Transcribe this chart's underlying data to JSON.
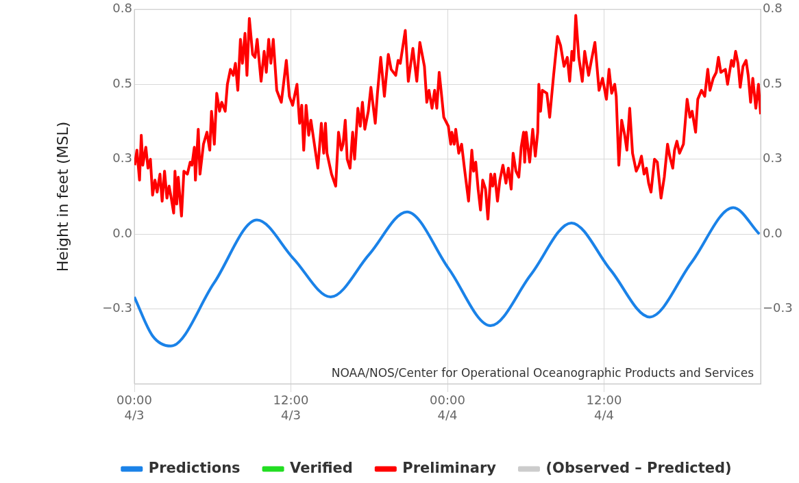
{
  "chart_data": {
    "type": "line",
    "ylabel": "Height in feet (MSL)",
    "xlim": [
      "--04-03T00:00",
      "--04-05T00:00"
    ],
    "xticks": [
      {
        "value": "--04-03T00:00",
        "label": "00:00\n4/3"
      },
      {
        "value": "--04-03T12:00",
        "label": "12:00\n4/3"
      },
      {
        "value": "--04-04T00:00",
        "label": "00:00\n4/4"
      },
      {
        "value": "--04-04T12:00",
        "label": "12:00\n4/4"
      }
    ],
    "ylim": [
      -0.5,
      0.75
    ],
    "yticks": [
      {
        "value": -0.25,
        "label": "−0.3"
      },
      {
        "value": 0,
        "label": "0.0"
      },
      {
        "value": 0.25,
        "label": "0.3"
      },
      {
        "value": 0.5,
        "label": "0.5"
      },
      {
        "value": 0.75,
        "label": "0.8"
      }
    ],
    "y2lim": [
      -0.5,
      0.75
    ],
    "y2ticks": [
      {
        "value": -0.25,
        "label": "−0.3"
      },
      {
        "value": 0,
        "label": "0.0"
      },
      {
        "value": 0.25,
        "label": "0.3"
      },
      {
        "value": 0.5,
        "label": "0.5"
      },
      {
        "value": 0.75,
        "label": "0.8"
      }
    ],
    "grid": true,
    "legend": "bottom",
    "marker": "none",
    "annotations": [
      "NOAA/NOS/Center for Operational Oceanographic Products and Services"
    ],
    "series": [
      {
        "name": "Predictions",
        "color": "#1a82e8",
        "x": [
          "--04-03T00:00",
          "--04-03T01:24",
          "--04-03T02:48",
          "--04-03T06:06",
          "--04-03T09:24",
          "--04-03T12:12",
          "--04-03T15:03",
          "--04-03T18:00",
          "--04-03T20:54",
          "--04-04T00:06",
          "--04-04T03:18",
          "--04-04T06:24",
          "--04-04T09:30",
          "--04-04T12:30",
          "--04-04T15:30",
          "--04-04T18:42",
          "--04-04T21:54",
          "--04-04T23:54"
        ],
        "values": [
          -0.21,
          -0.34,
          -0.374,
          -0.164,
          0.047,
          -0.082,
          -0.21,
          -0.068,
          0.074,
          -0.116,
          -0.306,
          -0.135,
          0.037,
          -0.12,
          -0.277,
          -0.095,
          0.088,
          0.0
        ]
      },
      {
        "name": "Verified",
        "color": "#22dd22"
      },
      {
        "name": "Preliminary",
        "color": "#ff0000",
        "x": [
          "--04-03T00:02",
          "--04-03T00:12",
          "--04-03T00:24",
          "--04-03T00:32",
          "--04-03T00:39",
          "--04-03T00:53",
          "--04-03T01:03",
          "--04-03T01:14",
          "--04-03T01:24",
          "--04-03T01:35",
          "--04-03T01:45",
          "--04-03T01:58",
          "--04-03T02:08",
          "--04-03T02:19",
          "--04-03T02:30",
          "--04-03T02:40",
          "--04-03T02:50",
          "--04-03T03:01",
          "--04-03T03:07",
          "--04-03T03:15",
          "--04-03T03:22",
          "--04-03T03:37",
          "--04-03T03:48",
          "--04-03T04:04",
          "--04-03T04:17",
          "--04-03T04:25",
          "--04-03T04:36",
          "--04-03T04:41",
          "--04-03T04:54",
          "--04-03T05:02",
          "--04-03T05:18",
          "--04-03T05:34",
          "--04-03T05:47",
          "--04-03T05:55",
          "--04-03T06:08",
          "--04-03T06:19",
          "--04-03T06:32",
          "--04-03T06:42",
          "--04-03T06:58",
          "--04-03T07:08",
          "--04-03T07:22",
          "--04-03T07:35",
          "--04-03T07:45",
          "--04-03T07:56",
          "--04-03T08:08",
          "--04-03T08:17",
          "--04-03T08:29",
          "--04-03T08:38",
          "--04-03T08:49",
          "--04-03T09:04",
          "--04-03T09:15",
          "--04-03T09:25",
          "--04-03T09:43",
          "--04-03T09:57",
          "--04-03T10:07",
          "--04-03T10:18",
          "--04-03T10:28",
          "--04-03T10:39",
          "--04-03T10:55",
          "--04-03T11:16",
          "--04-03T11:26",
          "--04-03T11:39",
          "--04-03T11:53",
          "--04-03T12:08",
          "--04-03T12:28",
          "--04-03T12:40",
          "--04-03T12:50",
          "--04-03T12:59",
          "--04-03T13:10",
          "--04-03T13:22",
          "--04-03T13:32",
          "--04-03T13:48",
          "--04-03T14:04",
          "--04-03T14:20",
          "--04-03T14:31",
          "--04-03T14:39",
          "--04-03T14:46",
          "--04-03T15:07",
          "--04-03T15:26",
          "--04-03T15:39",
          "--04-03T15:52",
          "--04-03T16:00",
          "--04-03T16:10",
          "--04-03T16:19",
          "--04-03T16:32",
          "--04-03T16:44",
          "--04-03T16:53",
          "--04-03T17:08",
          "--04-03T17:19",
          "--04-03T17:29",
          "--04-03T17:40",
          "--04-03T17:56",
          "--04-03T18:08",
          "--04-03T18:28",
          "--04-03T18:38",
          "--04-03T18:53",
          "--04-03T19:10",
          "--04-03T19:28",
          "--04-03T19:41",
          "--04-03T20:02",
          "--04-03T20:13",
          "--04-03T20:23",
          "--04-03T20:46",
          "--04-03T21:00",
          "--04-03T21:21",
          "--04-03T21:39",
          "--04-03T21:53",
          "--04-03T22:14",
          "--04-03T22:25",
          "--04-03T22:35",
          "--04-03T22:49",
          "--04-03T23:01",
          "--04-03T23:11",
          "--04-03T23:22",
          "--04-03T23:32",
          "--04-03T23:43",
          "--04-04T00:04",
          "--04-04T00:15",
          "--04-04T00:20",
          "--04-04T00:31",
          "--04-04T00:38",
          "--04-04T00:52",
          "--04-04T01:05",
          "--04-04T01:18",
          "--04-04T01:37",
          "--04-04T01:52",
          "--04-04T02:00",
          "--04-04T02:10",
          "--04-04T02:21",
          "--04-04T02:32",
          "--04-04T02:42",
          "--04-04T02:55",
          "--04-04T03:06",
          "--04-04T03:19",
          "--04-04T03:28",
          "--04-04T03:37",
          "--04-04T03:50",
          "--04-04T04:01",
          "--04-04T04:15",
          "--04-04T04:29",
          "--04-04T04:40",
          "--04-04T04:53",
          "--04-04T05:02",
          "--04-04T05:15",
          "--04-04T05:28",
          "--04-04T05:39",
          "--04-04T05:50",
          "--04-04T05:55",
          "--04-04T06:02",
          "--04-04T06:18",
          "--04-04T06:32",
          "--04-04T06:44",
          "--04-04T06:55",
          "--04-04T07:00",
          "--04-04T07:08",
          "--04-04T07:16",
          "--04-04T07:37",
          "--04-04T07:50",
          "--04-04T08:08",
          "--04-04T08:26",
          "--04-04T08:40",
          "--04-04T08:56",
          "--04-04T09:11",
          "--04-04T09:22",
          "--04-04T09:32",
          "--04-04T09:41",
          "--04-04T09:50",
          "--04-04T10:04",
          "--04-04T10:20",
          "--04-04T10:31",
          "--04-04T10:49",
          "--04-04T11:02",
          "--04-04T11:18",
          "--04-04T11:37",
          "--04-04T11:53",
          "--04-04T12:11",
          "--04-04T12:23",
          "--04-04T12:35",
          "--04-04T12:49",
          "--04-04T12:56",
          "--04-04T13:08",
          "--04-04T13:21",
          "--04-04T13:35",
          "--04-04T13:45",
          "--04-04T13:58",
          "--04-04T14:11",
          "--04-04T14:28",
          "--04-04T14:41",
          "--04-04T14:52",
          "--04-04T15:04",
          "--04-04T15:15",
          "--04-04T15:25",
          "--04-04T15:36",
          "--04-04T15:52",
          "--04-04T16:05",
          "--04-04T16:22",
          "--04-04T16:37",
          "--04-04T16:52",
          "--04-04T17:02",
          "--04-04T17:16",
          "--04-04T17:24",
          "--04-04T17:35",
          "--04-04T17:47",
          "--04-04T18:05",
          "--04-04T18:22",
          "--04-04T18:35",
          "--04-04T18:45",
          "--04-04T19:01",
          "--04-04T19:11",
          "--04-04T19:28",
          "--04-04T19:43",
          "--04-04T19:57",
          "--04-04T20:07",
          "--04-04T20:22",
          "--04-04T20:36",
          "--04-04T20:46",
          "--04-04T20:57",
          "--04-04T21:18",
          "--04-04T21:28",
          "--04-04T21:46",
          "--04-04T21:55",
          "--04-04T22:05",
          "--04-04T22:16",
          "--04-04T22:26",
          "--04-04T22:39",
          "--04-04T22:53",
          "--04-04T23:03",
          "--04-04T23:14",
          "--04-04T23:24",
          "--04-04T23:38",
          "--04-04T23:50",
          "--04-05T00:00"
        ],
        "values": [
          0.23,
          0.28,
          0.18,
          0.33,
          0.23,
          0.29,
          0.22,
          0.25,
          0.13,
          0.18,
          0.14,
          0.2,
          0.11,
          0.21,
          0.12,
          0.16,
          0.12,
          0.07,
          0.21,
          0.1,
          0.19,
          0.06,
          0.21,
          0.2,
          0.24,
          0.23,
          0.29,
          0.18,
          0.35,
          0.2,
          0.3,
          0.34,
          0.28,
          0.41,
          0.3,
          0.47,
          0.41,
          0.44,
          0.41,
          0.5,
          0.55,
          0.53,
          0.57,
          0.48,
          0.65,
          0.57,
          0.67,
          0.53,
          0.72,
          0.6,
          0.59,
          0.65,
          0.51,
          0.61,
          0.54,
          0.65,
          0.57,
          0.65,
          0.48,
          0.44,
          0.5,
          0.58,
          0.46,
          0.43,
          0.5,
          0.37,
          0.43,
          0.28,
          0.43,
          0.33,
          0.38,
          0.3,
          0.22,
          0.37,
          0.27,
          0.37,
          0.27,
          0.2,
          0.16,
          0.34,
          0.28,
          0.3,
          0.38,
          0.25,
          0.22,
          0.34,
          0.25,
          0.42,
          0.36,
          0.44,
          0.35,
          0.41,
          0.49,
          0.37,
          0.47,
          0.59,
          0.46,
          0.6,
          0.55,
          0.53,
          0.58,
          0.57,
          0.68,
          0.51,
          0.62,
          0.51,
          0.64,
          0.56,
          0.44,
          0.48,
          0.42,
          0.48,
          0.42,
          0.54,
          0.47,
          0.39,
          0.36,
          0.3,
          0.34,
          0.3,
          0.35,
          0.27,
          0.3,
          0.22,
          0.11,
          0.28,
          0.21,
          0.24,
          0.15,
          0.08,
          0.18,
          0.15,
          0.05,
          0.2,
          0.16,
          0.2,
          0.11,
          0.18,
          0.23,
          0.17,
          0.22,
          0.15,
          0.27,
          0.21,
          0.19,
          0.29,
          0.34,
          0.24,
          0.34,
          0.24,
          0.35,
          0.26,
          0.34,
          0.5,
          0.41,
          0.48,
          0.47,
          0.39,
          0.53,
          0.66,
          0.63,
          0.56,
          0.59,
          0.51,
          0.61,
          0.58,
          0.73,
          0.59,
          0.51,
          0.61,
          0.53,
          0.58,
          0.64,
          0.48,
          0.52,
          0.45,
          0.55,
          0.47,
          0.5,
          0.46,
          0.23,
          0.38,
          0.33,
          0.28,
          0.42,
          0.27,
          0.21,
          0.23,
          0.26,
          0.2,
          0.22,
          0.17,
          0.14,
          0.25,
          0.24,
          0.12,
          0.19,
          0.3,
          0.26,
          0.22,
          0.28,
          0.31,
          0.27,
          0.3,
          0.45,
          0.39,
          0.41,
          0.34,
          0.45,
          0.48,
          0.46,
          0.55,
          0.48,
          0.52,
          0.54,
          0.59,
          0.54,
          0.55,
          0.5,
          0.58,
          0.56,
          0.61,
          0.57,
          0.49,
          0.56,
          0.58,
          0.53,
          0.44,
          0.52,
          0.42,
          0.5,
          0.4
        ]
      },
      {
        "name": "(Observed – Predicted)",
        "color": "#cccccc"
      }
    ]
  }
}
